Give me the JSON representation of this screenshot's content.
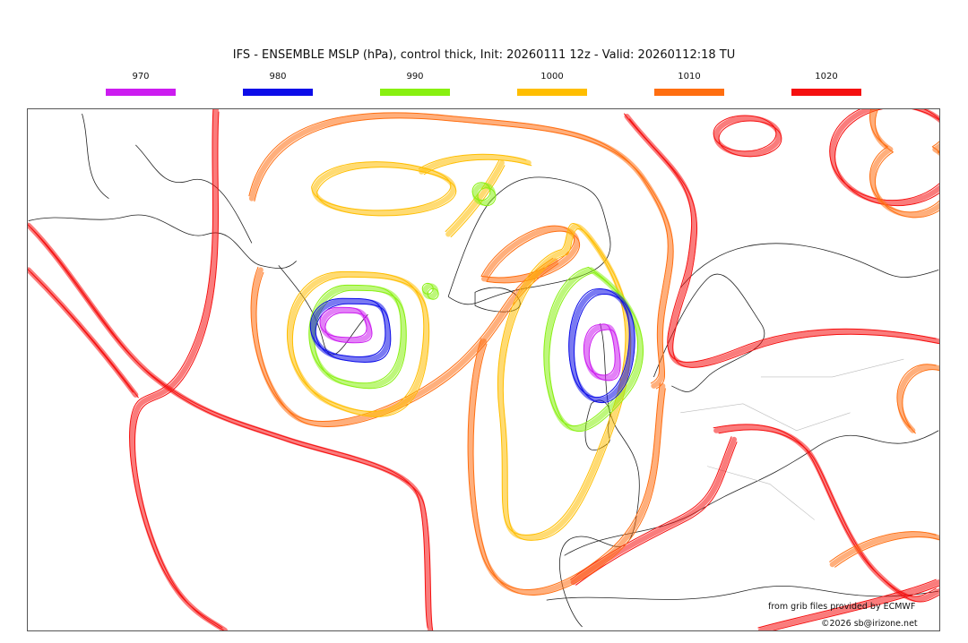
{
  "title": "IFS - ENSEMBLE MSLP (hPa), control thick, Init: 20260111 12z - Valid: 20260112:18 TU",
  "legend": [
    {
      "label": "970",
      "color": "#cc1cf0"
    },
    {
      "label": "980",
      "color": "#0c0ce8"
    },
    {
      "label": "990",
      "color": "#88f010"
    },
    {
      "label": "1000",
      "color": "#ffbe00"
    },
    {
      "label": "1010",
      "color": "#ff6e10"
    },
    {
      "label": "1020",
      "color": "#f51010"
    }
  ],
  "credits": {
    "source": "from grib files provided by ECMWF",
    "copyright": "©2026 sb@irizone.net"
  }
}
